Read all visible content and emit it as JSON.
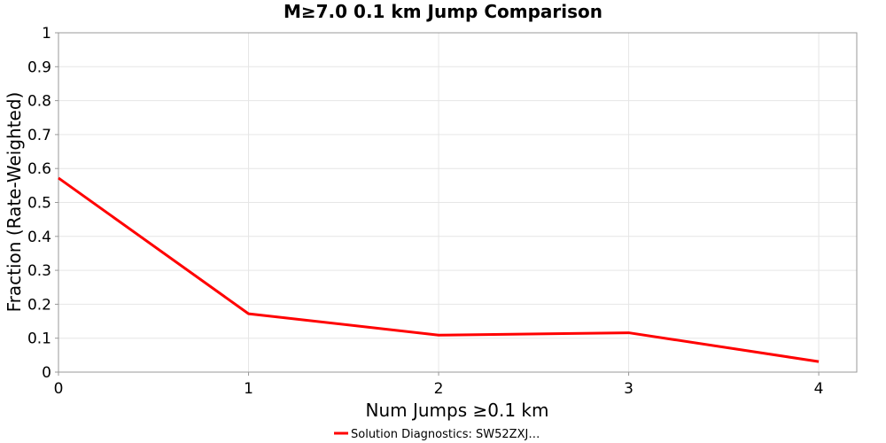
{
  "chart_data": {
    "type": "line",
    "title": "M≥7.0 0.1 km Jump Comparison",
    "xlabel": "Num Jumps ≥0.1 km",
    "ylabel": "Fraction (Rate-Weighted)",
    "xlim": [
      0,
      4.2
    ],
    "ylim": [
      0,
      1
    ],
    "x_ticks": [
      0,
      1,
      2,
      3,
      4
    ],
    "y_ticks": [
      0,
      0.1,
      0.2,
      0.3,
      0.4,
      0.5,
      0.6,
      0.7,
      0.8,
      0.9,
      1
    ],
    "x_tick_labels": [
      "0",
      "1",
      "2",
      "3",
      "4"
    ],
    "y_tick_labels": [
      "0",
      "0.1",
      "0.2",
      "0.3",
      "0.4",
      "0.5",
      "0.6",
      "0.7",
      "0.8",
      "0.9",
      "1"
    ],
    "grid": true,
    "legend_position": "bottom",
    "series": [
      {
        "name": "Solution Diagnostics: SW52ZXJ…",
        "color": "#ff0000",
        "x": [
          0,
          1,
          2,
          3,
          4
        ],
        "y": [
          0.572,
          0.172,
          0.109,
          0.116,
          0.031
        ]
      }
    ]
  }
}
